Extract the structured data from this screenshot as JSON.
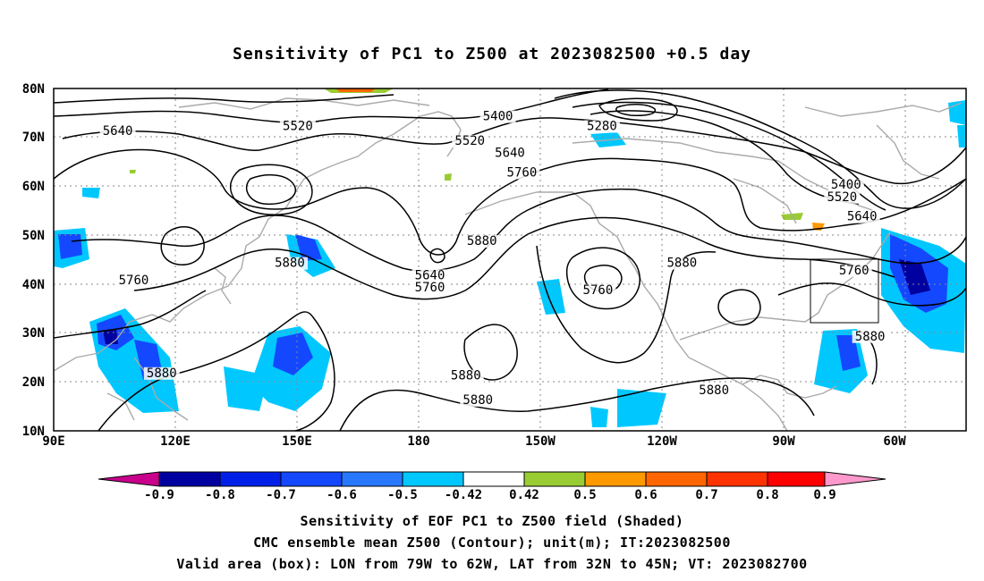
{
  "title": "Sensitivity of PC1 to Z500 at 2023082500 +0.5 day",
  "map": {
    "lat_labels": [
      "80N",
      "70N",
      "60N",
      "50N",
      "40N",
      "30N",
      "20N",
      "10N"
    ],
    "lon_labels": [
      "90E",
      "120E",
      "150E",
      "180",
      "150W",
      "120W",
      "90W",
      "60W"
    ],
    "contour_labels": [
      {
        "text": "5640",
        "lon": 106,
        "lat": 70.5
      },
      {
        "text": "5520",
        "lon": 151,
        "lat": 71.5
      },
      {
        "text": "5400",
        "lon": 201,
        "lat": 73.5
      },
      {
        "text": "5280",
        "lon": 227,
        "lat": 71.5
      },
      {
        "text": "5520",
        "lon": 194,
        "lat": 68.5
      },
      {
        "text": "5640",
        "lon": 204,
        "lat": 66.0
      },
      {
        "text": "5760",
        "lon": 207,
        "lat": 62.0
      },
      {
        "text": "5400",
        "lon": 288,
        "lat": 59.5
      },
      {
        "text": "5520",
        "lon": 287,
        "lat": 57.0
      },
      {
        "text": "5640",
        "lon": 292,
        "lat": 53.0
      },
      {
        "text": "5880",
        "lon": 149,
        "lat": 43.5
      },
      {
        "text": "5760",
        "lon": 110,
        "lat": 40.0
      },
      {
        "text": "5640",
        "lon": 184,
        "lat": 41.0
      },
      {
        "text": "5760",
        "lon": 184,
        "lat": 38.5
      },
      {
        "text": "5880",
        "lon": 197,
        "lat": 48.0
      },
      {
        "text": "5760",
        "lon": 226,
        "lat": 38.0
      },
      {
        "text": "5880",
        "lon": 247,
        "lat": 43.5
      },
      {
        "text": "5760",
        "lon": 290,
        "lat": 42.0
      },
      {
        "text": "5880",
        "lon": 294,
        "lat": 28.5
      },
      {
        "text": "5880",
        "lon": 117,
        "lat": 21.0
      },
      {
        "text": "5880",
        "lon": 193,
        "lat": 20.5
      },
      {
        "text": "5880",
        "lon": 196,
        "lat": 15.5
      },
      {
        "text": "5880",
        "lon": 255,
        "lat": 17.5
      }
    ]
  },
  "colorbar": {
    "labels": [
      "-0.9",
      "-0.8",
      "-0.7",
      "-0.6",
      "-0.5",
      "-0.42",
      "0.42",
      "0.5",
      "0.6",
      "0.7",
      "0.8",
      "0.9"
    ],
    "colors": [
      "#c8008c",
      "#0000a0",
      "#0020e8",
      "#1448ff",
      "#2878ff",
      "#00c8ff",
      "#ffffff",
      "#99cc33",
      "#ff9900",
      "#ff6600",
      "#ff3300",
      "#ff0000",
      "#ff99cc"
    ]
  },
  "captions": [
    "Sensitivity of EOF PC1 to Z500 field (Shaded)",
    "CMC ensemble mean Z500 (Contour); unit(m); IT:2023082500",
    "Valid area (box): LON from 79W to 62W, LAT from 32N to 45N; VT: 2023082700"
  ]
}
